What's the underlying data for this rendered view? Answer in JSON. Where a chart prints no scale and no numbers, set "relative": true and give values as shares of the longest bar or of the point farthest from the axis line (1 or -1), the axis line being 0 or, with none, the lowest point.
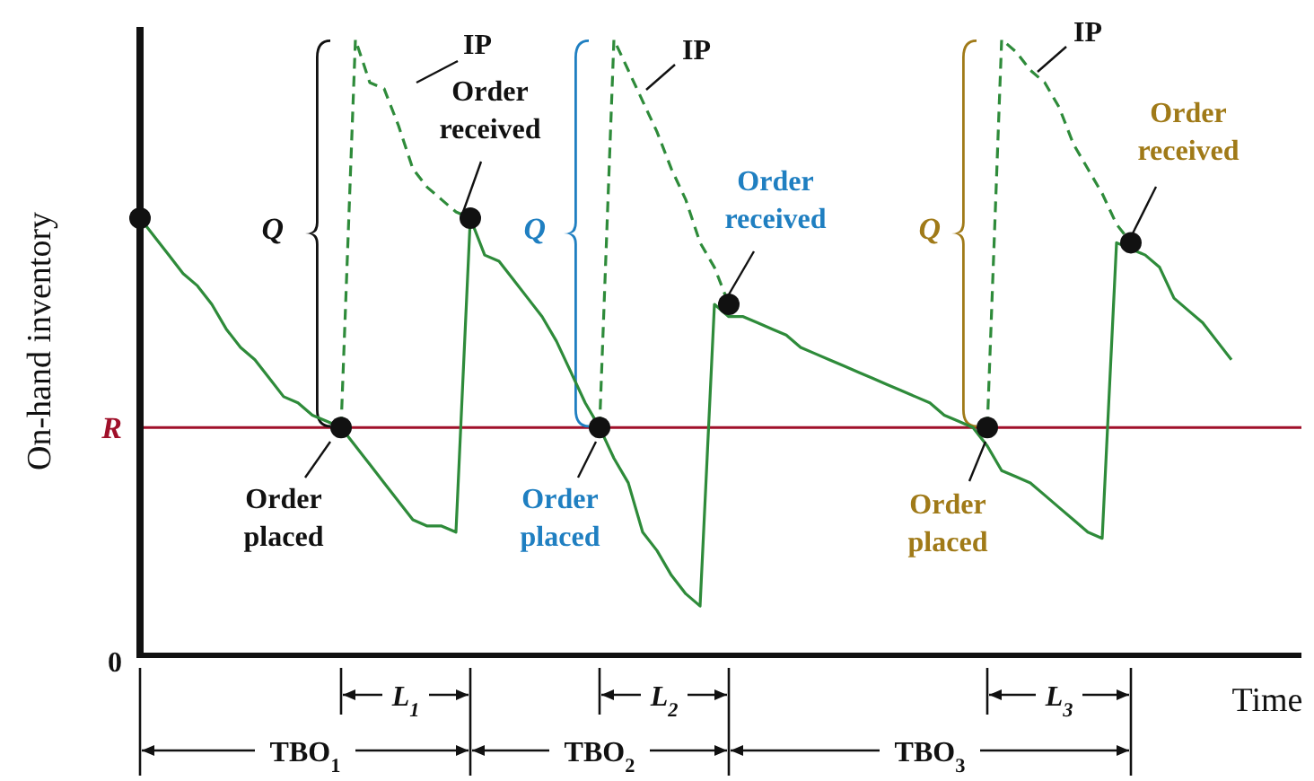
{
  "chart_data": {
    "type": "line",
    "relative": true,
    "xlabel": "Time",
    "ylabel": "On-hand inventory",
    "categories": [
      null,
      null,
      null,
      null,
      null,
      null,
      null,
      null,
      null,
      null,
      null,
      null,
      null,
      null,
      null,
      null,
      null,
      null,
      null,
      null,
      null,
      null,
      null,
      null,
      null,
      null,
      null,
      null,
      null,
      null,
      null,
      null,
      null,
      null,
      null,
      null,
      null,
      null,
      null,
      null,
      null,
      null,
      null,
      null,
      null,
      null,
      null,
      null,
      null,
      null,
      null,
      null,
      null,
      null,
      null,
      null,
      null,
      null,
      null,
      null,
      null,
      null,
      null,
      null,
      null,
      null,
      null,
      null,
      null,
      null,
      null,
      null,
      null,
      null,
      null,
      null,
      null,
      null,
      null,
      null,
      null
    ],
    "series": [
      {
        "color": "#2e8b3a",
        "line_style": "solid",
        "values": [
          0.71,
          0.68,
          0.65,
          0.62,
          0.6,
          0.57,
          0.53,
          0.5,
          0.48,
          0.45,
          0.42,
          0.41,
          0.39,
          0.38,
          0.37,
          0.34,
          0.31,
          0.28,
          0.25,
          0.22,
          0.21,
          0.21,
          0.2,
          0.71,
          0.65,
          0.64,
          0.61,
          0.58,
          0.55,
          0.51,
          0.46,
          0.41,
          0.37,
          0.32,
          0.28,
          0.2,
          0.17,
          0.13,
          0.1,
          0.08,
          0.57,
          0.55,
          0.55,
          0.54,
          0.53,
          0.52,
          0.5,
          0.49,
          0.48,
          0.47,
          0.46,
          0.45,
          0.44,
          0.43,
          0.42,
          0.41,
          0.39,
          0.38,
          0.37,
          0.34,
          0.3,
          0.29,
          0.28,
          0.26,
          0.24,
          0.22,
          0.2,
          0.19,
          0.67,
          0.66,
          0.65,
          0.63,
          0.58,
          0.56,
          0.54,
          0.51,
          0.48,
          null,
          null,
          null,
          null
        ]
      },
      {
        "color": "#2e8b3a",
        "line_style": "dashed",
        "values": [
          null,
          null,
          null,
          null,
          null,
          null,
          null,
          null,
          null,
          null,
          null,
          null,
          null,
          null,
          0.37,
          1.0,
          0.93,
          0.92,
          0.86,
          0.79,
          0.76,
          0.74,
          0.72,
          0.71,
          null,
          null,
          null,
          null,
          null,
          null,
          null,
          null,
          null,
          null,
          null,
          null,
          null,
          null,
          null,
          null,
          null,
          null,
          null,
          null,
          null,
          null,
          null,
          null,
          null,
          null,
          null,
          null,
          null,
          null,
          null,
          null,
          null,
          null,
          null,
          null,
          null,
          null,
          null,
          null,
          null,
          null,
          null,
          null,
          null,
          null,
          null,
          null,
          null,
          null,
          null,
          null,
          null,
          null,
          null,
          null,
          null
        ]
      },
      {
        "color": "#2e8b3a",
        "line_style": "dashed",
        "values": [
          null,
          null,
          null,
          null,
          null,
          null,
          null,
          null,
          null,
          null,
          null,
          null,
          null,
          null,
          null,
          null,
          null,
          null,
          null,
          null,
          null,
          null,
          null,
          null,
          null,
          null,
          null,
          null,
          null,
          null,
          null,
          null,
          0.37,
          1.0,
          0.95,
          0.9,
          0.85,
          0.79,
          0.74,
          0.67,
          0.63,
          0.57,
          null,
          null,
          null,
          null,
          null,
          null,
          null,
          null,
          null,
          null,
          null,
          null,
          null,
          null,
          null,
          null,
          null,
          null,
          null,
          null,
          null,
          null,
          null,
          null,
          null,
          null,
          null,
          null,
          null,
          null,
          null,
          null,
          null,
          null,
          null,
          null,
          null,
          null,
          null
        ]
      },
      {
        "color": "#2e8b3a",
        "line_style": "dashed",
        "values": [
          null,
          null,
          null,
          null,
          null,
          null,
          null,
          null,
          null,
          null,
          null,
          null,
          null,
          null,
          null,
          null,
          null,
          null,
          null,
          null,
          null,
          null,
          null,
          null,
          null,
          null,
          null,
          null,
          null,
          null,
          null,
          null,
          null,
          null,
          null,
          null,
          null,
          null,
          null,
          null,
          null,
          null,
          null,
          null,
          null,
          null,
          null,
          null,
          null,
          null,
          null,
          null,
          null,
          null,
          null,
          null,
          null,
          null,
          null,
          0.37,
          1.0,
          0.98,
          0.95,
          0.93,
          0.89,
          0.83,
          0.79,
          0.75,
          0.7,
          0.67,
          null,
          null,
          null,
          null,
          null,
          null,
          null,
          null,
          null,
          null,
          null
        ]
      }
    ],
    "ref_lines": [
      {
        "axis": "y",
        "value": 0.37,
        "label": "R",
        "color": "#a0102a"
      }
    ],
    "annotations": [
      "IP",
      "Order received",
      "Q",
      "Order placed",
      "IP",
      "Q",
      "Order received",
      "Order placed",
      "IP",
      "Q",
      "Order received",
      "Order placed",
      "L$_{1}$",
      "L$_{2}$",
      "L$_{3}$",
      "TBO$_{1}$",
      "TBO$_{2}$",
      "TBO$_{3}$",
      "0"
    ]
  }
}
